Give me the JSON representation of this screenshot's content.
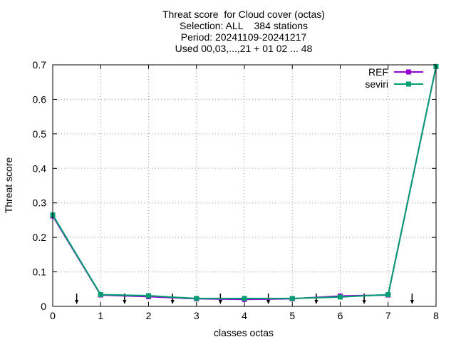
{
  "chart_data": {
    "type": "line",
    "title_lines": [
      "Threat score  for Cloud cover (octas)",
      "Selection: ALL    384 stations",
      "Period: 20241109-20241217",
      "Used 00,03,...,21 + 01 02 ... 48"
    ],
    "xlabel": "classes octas",
    "ylabel": "Threat score",
    "xlim": [
      0,
      8
    ],
    "ylim": [
      0,
      0.7
    ],
    "x_ticks": [
      "0",
      "1",
      "2",
      "3",
      "4",
      "5",
      "6",
      "7",
      "8"
    ],
    "y_ticks": [
      "0",
      "0.1",
      "0.2",
      "0.3",
      "0.4",
      "0.5",
      "0.6",
      "0.7"
    ],
    "grid": true,
    "legend_position": "top-right",
    "x": [
      0,
      1,
      2,
      3,
      4,
      5,
      6,
      7,
      8
    ],
    "series": [
      {
        "name": "REF",
        "color": "#9400d3",
        "values": [
          0.262,
          0.033,
          0.028,
          0.022,
          0.02,
          0.022,
          0.03,
          0.033,
          0.695
        ]
      },
      {
        "name": "seviri",
        "color": "#009e73",
        "values": [
          0.265,
          0.034,
          0.031,
          0.023,
          0.023,
          0.023,
          0.027,
          0.034,
          0.695
        ]
      }
    ],
    "arrow_markers_x": [
      0.5,
      1.5,
      2.5,
      3.5,
      4.5,
      5.5,
      6.5,
      7.5
    ]
  }
}
